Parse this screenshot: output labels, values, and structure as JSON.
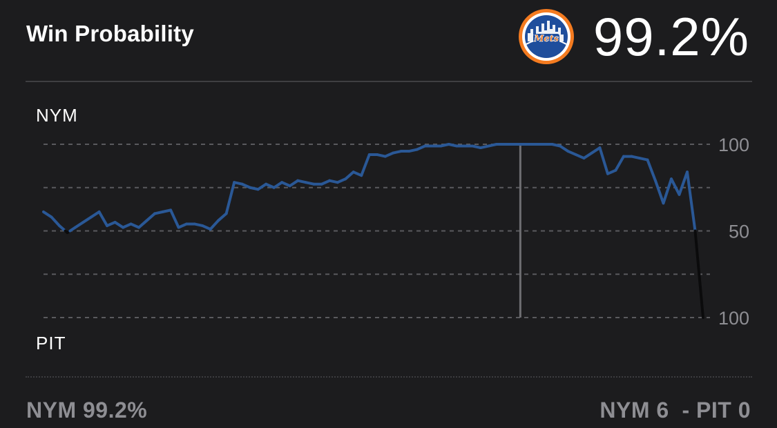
{
  "header": {
    "title": "Win Probability",
    "team_logo_icon": "mets-logo-icon",
    "win_pct_display": "99.2%"
  },
  "teams": {
    "top": "NYM",
    "bottom": "PIT"
  },
  "footer": {
    "left": "NYM 99.2%",
    "right": "NYM 6  - PIT 0"
  },
  "colors": {
    "background": "#1c1c1e",
    "line": "#2a5896",
    "line_below_50": "#0b0b0c",
    "grid": "#5a5a5e",
    "text": "#ffffff",
    "muted": "#8e8e93",
    "logo_orange": "#f47b20",
    "logo_blue": "#1f4e9c"
  },
  "chart_data": {
    "type": "line",
    "title": "Win Probability",
    "y_axis_ticks": [
      "100",
      "50",
      "100"
    ],
    "y_axis_values": [
      100,
      50,
      0
    ],
    "ylim": [
      0,
      100
    ],
    "grid": true,
    "grid_lines": [
      100,
      75,
      50,
      25,
      0
    ],
    "legend": "none",
    "top_label": "NYM",
    "bottom_label": "PIT",
    "scrubber_index": 60,
    "series": [
      {
        "values": [
          61,
          58,
          53,
          49,
          52,
          55,
          58,
          61,
          53,
          55,
          52,
          54,
          52,
          56,
          60,
          61,
          62,
          52,
          54,
          54,
          53,
          51,
          56,
          60,
          78,
          77,
          75,
          74,
          77,
          75,
          78,
          76,
          79,
          78,
          77,
          77,
          79,
          78,
          80,
          84,
          82,
          94,
          94,
          93,
          95,
          96,
          96,
          97,
          99,
          99,
          99,
          100,
          99,
          99,
          99,
          98,
          99,
          100,
          100,
          100,
          100,
          100,
          100,
          100,
          100,
          99,
          96,
          94,
          92,
          95,
          98,
          83,
          85,
          93,
          93,
          92,
          91,
          79,
          66,
          80,
          71,
          84,
          50,
          0
        ]
      }
    ]
  }
}
